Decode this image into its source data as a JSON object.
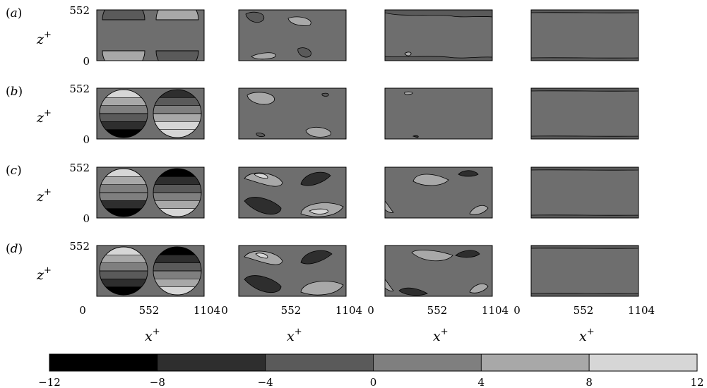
{
  "chart_data": {
    "type": "heatmap",
    "description_rows": [
      "(a)",
      "(b)",
      "(c)",
      "(d)"
    ],
    "row_labels": [
      {
        "open": "(",
        "letter": "a",
        "close": ")"
      },
      {
        "open": "(",
        "letter": "b",
        "close": ")"
      },
      {
        "open": "(",
        "letter": "c",
        "close": ")"
      },
      {
        "open": "(",
        "letter": "d",
        "close": ")"
      }
    ],
    "xlabel": {
      "base": "x",
      "sup": "+"
    },
    "ylabel": {
      "base": "z",
      "sup": "+"
    },
    "x_ticks": [
      "0",
      "552",
      "1104"
    ],
    "y_ticks": [
      "552",
      "0"
    ],
    "xlim": [
      0,
      1104
    ],
    "ylim": [
      0,
      552
    ],
    "colorbar": {
      "ticks": [
        "−12",
        "−8",
        "−4",
        "0",
        "4",
        "8",
        "12"
      ],
      "levels": [
        -12,
        -8,
        -4,
        0,
        4,
        8,
        12
      ],
      "colors": [
        "#000000",
        "#2e2e2e",
        "#5a5a5a",
        "#7f7f7f",
        "#a8a8a8",
        "#d6d6d6"
      ]
    },
    "background_level_color": "#6e6e6e",
    "panels_per_row": 4
  }
}
